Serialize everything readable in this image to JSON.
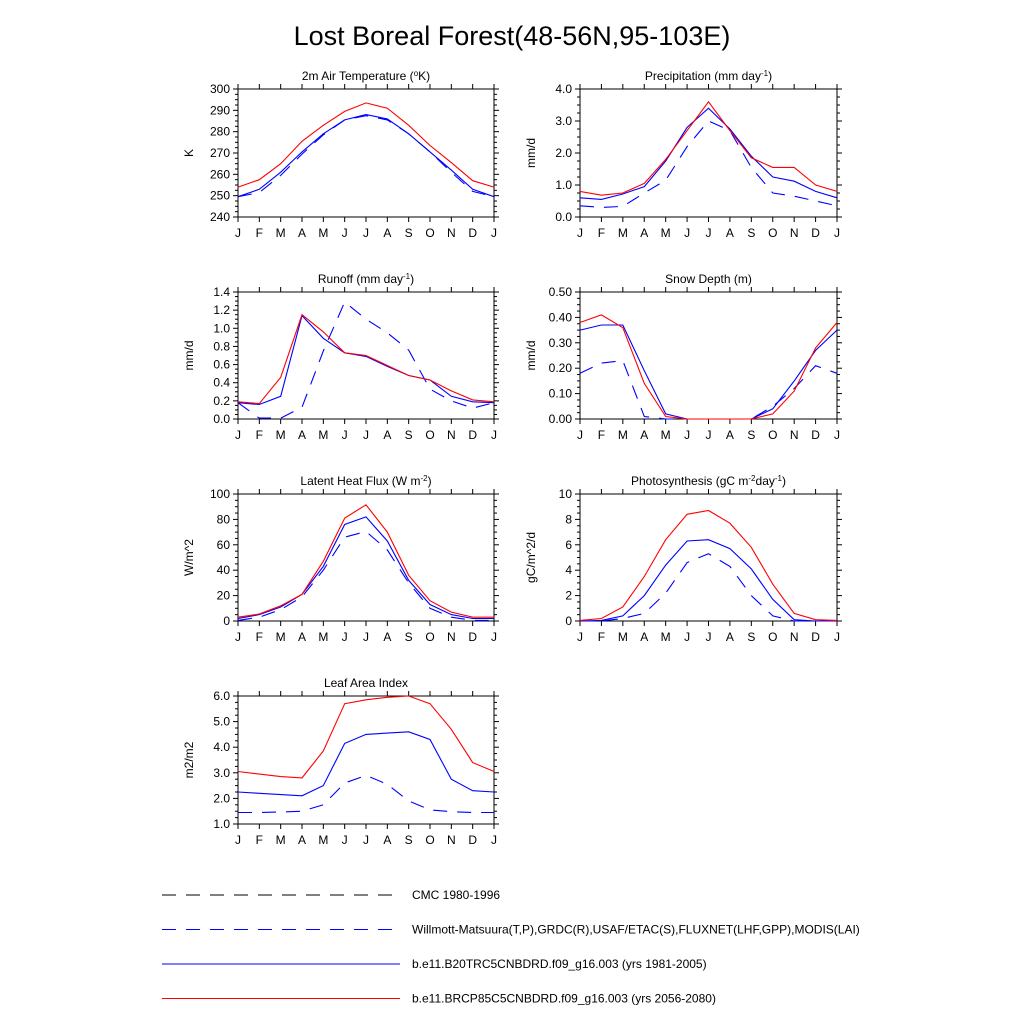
{
  "figure": {
    "title": "Lost Boreal Forest(48-56N,95-103E)"
  },
  "months": [
    "J",
    "F",
    "M",
    "A",
    "M",
    "J",
    "J",
    "A",
    "S",
    "O",
    "N",
    "D",
    "J"
  ],
  "colors": {
    "cmc": "#000000",
    "obs": "#0000ff",
    "hist": "#0000ff",
    "future": "#ff0000"
  },
  "legend": [
    {
      "key": "cmc",
      "label": "CMC 1980-1996",
      "color": "#000000",
      "dash": "long"
    },
    {
      "key": "obs",
      "label": "Willmott-Matsuura(T,P),GRDC(R),USAF/ETAC(S),FLUXNET(LHF,GPP),MODIS(LAI)",
      "color": "#0000ff",
      "dash": "long"
    },
    {
      "key": "hist",
      "label": "b.e11.B20TRC5CNBDRD.f09_g16.003 (yrs 1981-2005)",
      "color": "#0000ff",
      "dash": "solid"
    },
    {
      "key": "future",
      "label": "b.e11.BRCP85C5CNBDRD.f09_g16.003 (yrs 2056-2080)",
      "color": "#ff0000",
      "dash": "solid"
    }
  ],
  "chart_data": [
    {
      "id": "tsa",
      "type": "line",
      "title": {
        "base": "2m Air Temperature (",
        "sup": "o",
        "rest": "K)"
      },
      "ylabel": "K",
      "ylim": [
        240,
        300
      ],
      "yticks": [
        240,
        250,
        260,
        270,
        280,
        290,
        300
      ],
      "ytick_labels": [
        "240",
        "250",
        "260",
        "270",
        "280",
        "290",
        "300"
      ],
      "x": [
        "J",
        "F",
        "M",
        "A",
        "M",
        "J",
        "J",
        "A",
        "S",
        "O",
        "N",
        "D",
        "J"
      ],
      "series": [
        {
          "key": "obs",
          "values": [
            249.5,
            251.5,
            259.5,
            269.5,
            278.5,
            285.5,
            287.5,
            285.5,
            279.0,
            270.5,
            261.0,
            252.0,
            249.5
          ]
        },
        {
          "key": "hist",
          "values": [
            249.5,
            253.0,
            261.0,
            270.5,
            279.0,
            285.5,
            288.0,
            286.0,
            279.0,
            270.5,
            262.0,
            253.0,
            249.5
          ]
        },
        {
          "key": "future",
          "values": [
            254.0,
            257.5,
            265.0,
            275.5,
            283.0,
            289.5,
            293.5,
            291.0,
            283.0,
            273.5,
            265.5,
            257.0,
            254.0
          ]
        }
      ]
    },
    {
      "id": "prect",
      "type": "line",
      "title": {
        "base": "Precipitation (mm day",
        "sup": "-1",
        "rest": ")"
      },
      "ylabel": "mm/d",
      "ylim": [
        0,
        4
      ],
      "yticks": [
        0,
        1,
        2,
        3,
        4
      ],
      "ytick_labels": [
        "0.0",
        "1.0",
        "2.0",
        "3.0",
        "4.0"
      ],
      "x": [
        "J",
        "F",
        "M",
        "A",
        "M",
        "J",
        "J",
        "A",
        "S",
        "O",
        "N",
        "D",
        "J"
      ],
      "series": [
        {
          "key": "obs",
          "values": [
            0.35,
            0.3,
            0.33,
            0.75,
            1.15,
            2.2,
            3.0,
            2.7,
            1.55,
            0.75,
            0.65,
            0.5,
            0.35
          ]
        },
        {
          "key": "hist",
          "values": [
            0.6,
            0.55,
            0.72,
            0.95,
            1.75,
            2.8,
            3.4,
            2.75,
            1.9,
            1.25,
            1.12,
            0.8,
            0.6
          ]
        },
        {
          "key": "future",
          "values": [
            0.8,
            0.68,
            0.75,
            1.05,
            1.8,
            2.7,
            3.6,
            2.7,
            1.85,
            1.55,
            1.55,
            1.0,
            0.8
          ]
        }
      ]
    },
    {
      "id": "runoff",
      "type": "line",
      "title": {
        "base": "Runoff (mm day",
        "sup": "-1",
        "rest": ")"
      },
      "ylabel": "mm/d",
      "ylim": [
        0,
        1.4
      ],
      "yticks": [
        0,
        0.2,
        0.4,
        0.6,
        0.8,
        1.0,
        1.2,
        1.4
      ],
      "ytick_labels": [
        "0.0",
        "0.2",
        "0.4",
        "0.6",
        "0.8",
        "1.0",
        "1.2",
        "1.4"
      ],
      "x": [
        "J",
        "F",
        "M",
        "A",
        "M",
        "J",
        "J",
        "A",
        "S",
        "O",
        "N",
        "D",
        "J"
      ],
      "series": [
        {
          "key": "obs",
          "values": [
            0.18,
            0.01,
            0.01,
            0.13,
            0.75,
            1.29,
            1.1,
            0.95,
            0.76,
            0.33,
            0.2,
            0.12,
            0.18
          ]
        },
        {
          "key": "hist",
          "values": [
            0.18,
            0.16,
            0.25,
            1.14,
            0.89,
            0.73,
            0.69,
            0.58,
            0.48,
            0.43,
            0.25,
            0.19,
            0.18
          ]
        },
        {
          "key": "future",
          "values": [
            0.19,
            0.17,
            0.46,
            1.15,
            0.96,
            0.73,
            0.7,
            0.59,
            0.48,
            0.43,
            0.31,
            0.21,
            0.19
          ]
        }
      ]
    },
    {
      "id": "snowdp",
      "type": "line",
      "title": {
        "base": "Snow Depth (m)",
        "sup": "",
        "rest": ""
      },
      "ylabel": "mm/d",
      "ylim": [
        0,
        0.5
      ],
      "yticks": [
        0,
        0.1,
        0.2,
        0.3,
        0.4,
        0.5
      ],
      "ytick_labels": [
        "0.00",
        "0.10",
        "0.20",
        "0.30",
        "0.40",
        "0.50"
      ],
      "x": [
        "J",
        "F",
        "M",
        "A",
        "M",
        "J",
        "J",
        "A",
        "S",
        "O",
        "N",
        "D",
        "J"
      ],
      "series": [
        {
          "key": "cmc",
          "values": [
            0,
            0,
            0,
            0,
            0,
            0,
            0,
            0,
            0,
            0,
            0,
            0,
            0
          ]
        },
        {
          "key": "obs",
          "values": [
            0.18,
            0.22,
            0.23,
            0.01,
            0.0,
            0.0,
            0.0,
            0.0,
            0.0,
            0.05,
            0.12,
            0.21,
            0.18
          ]
        },
        {
          "key": "hist",
          "values": [
            0.35,
            0.37,
            0.37,
            0.19,
            0.02,
            0.0,
            0.0,
            0.0,
            0.0,
            0.04,
            0.15,
            0.27,
            0.35
          ]
        },
        {
          "key": "future",
          "values": [
            0.38,
            0.41,
            0.36,
            0.14,
            0.01,
            0.0,
            0.0,
            0.0,
            0.0,
            0.02,
            0.11,
            0.28,
            0.38
          ]
        }
      ]
    },
    {
      "id": "lhf",
      "type": "line",
      "title": {
        "base": "Latent Heat Flux (W m",
        "sup": "-2",
        "rest": ")"
      },
      "ylabel": "W/m^2",
      "ylim": [
        0,
        100
      ],
      "yticks": [
        0,
        20,
        40,
        60,
        80,
        100
      ],
      "ytick_labels": [
        "0",
        "20",
        "40",
        "60",
        "80",
        "100"
      ],
      "x": [
        "J",
        "F",
        "M",
        "A",
        "M",
        "J",
        "J",
        "A",
        "S",
        "O",
        "N",
        "D",
        "J"
      ],
      "series": [
        {
          "key": "obs",
          "values": [
            0.5,
            3.0,
            9.0,
            19.0,
            40.0,
            66.0,
            70.5,
            56.0,
            30.0,
            10.0,
            3.0,
            0.5,
            0.5
          ]
        },
        {
          "key": "hist",
          "values": [
            2.0,
            5.0,
            11.0,
            21.0,
            43.0,
            76.0,
            82.0,
            63.0,
            32.0,
            13.0,
            5.0,
            2.0,
            2.0
          ]
        },
        {
          "key": "future",
          "values": [
            3.0,
            5.5,
            12.0,
            21.0,
            47.0,
            81.0,
            91.5,
            70.0,
            36.0,
            16.0,
            7.0,
            3.0,
            3.0
          ]
        }
      ]
    },
    {
      "id": "gpp",
      "type": "line",
      "title": {
        "base": "Photosynthesis (gC m",
        "sup": "-2",
        "rest": "day",
        "sup2": "-1",
        "rest2": ")"
      },
      "ylabel": "gC/m^2/d",
      "ylim": [
        0,
        10
      ],
      "yticks": [
        0,
        2,
        4,
        6,
        8,
        10
      ],
      "ytick_labels": [
        "0",
        "2",
        "4",
        "6",
        "8",
        "10"
      ],
      "x": [
        "J",
        "F",
        "M",
        "A",
        "M",
        "J",
        "J",
        "A",
        "S",
        "O",
        "N",
        "D",
        "J"
      ],
      "series": [
        {
          "key": "obs",
          "values": [
            0.0,
            0.0,
            0.2,
            0.6,
            2.2,
            4.6,
            5.3,
            4.3,
            2.0,
            0.4,
            0.0,
            0.0,
            0.0
          ]
        },
        {
          "key": "hist",
          "values": [
            0.0,
            0.05,
            0.4,
            2.0,
            4.4,
            6.3,
            6.4,
            5.7,
            4.1,
            1.7,
            0.1,
            0.0,
            0.0
          ]
        },
        {
          "key": "future",
          "values": [
            0.05,
            0.2,
            1.1,
            3.5,
            6.4,
            8.4,
            8.7,
            7.7,
            5.8,
            2.9,
            0.6,
            0.1,
            0.05
          ]
        }
      ]
    },
    {
      "id": "lai",
      "type": "line",
      "title": {
        "base": "Leaf Area Index",
        "sup": "",
        "rest": ""
      },
      "ylabel": "m2/m2",
      "ylim": [
        1,
        6
      ],
      "yticks": [
        1,
        2,
        3,
        4,
        5,
        6
      ],
      "ytick_labels": [
        "1.0",
        "2.0",
        "3.0",
        "4.0",
        "5.0",
        "6.0"
      ],
      "x": [
        "J",
        "F",
        "M",
        "A",
        "M",
        "J",
        "J",
        "A",
        "S",
        "O",
        "N",
        "D",
        "J"
      ],
      "series": [
        {
          "key": "obs",
          "values": [
            1.45,
            1.45,
            1.47,
            1.5,
            1.75,
            2.6,
            2.9,
            2.55,
            1.9,
            1.55,
            1.48,
            1.45,
            1.45
          ]
        },
        {
          "key": "hist",
          "values": [
            2.25,
            2.2,
            2.15,
            2.1,
            2.5,
            4.15,
            4.5,
            4.55,
            4.6,
            4.3,
            2.75,
            2.3,
            2.25
          ]
        },
        {
          "key": "future",
          "values": [
            3.05,
            2.95,
            2.85,
            2.8,
            3.85,
            5.7,
            5.85,
            5.95,
            6.0,
            5.7,
            4.7,
            3.4,
            3.05
          ]
        }
      ]
    }
  ]
}
